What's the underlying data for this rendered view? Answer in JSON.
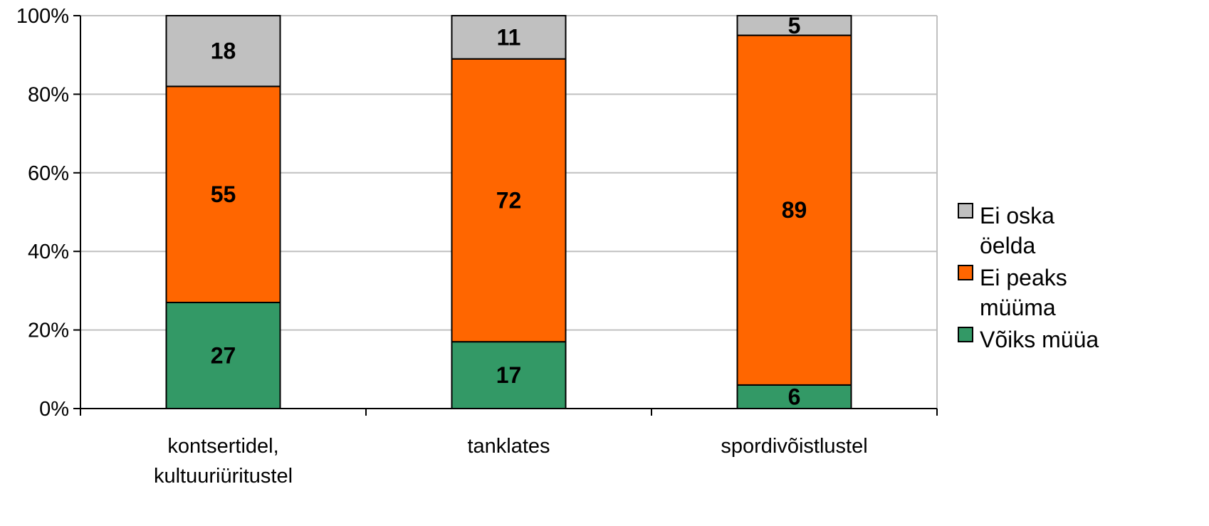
{
  "chart_data": {
    "type": "bar",
    "stacked": true,
    "percent_stacked": true,
    "categories": [
      [
        "kontsertidel,",
        "kultuuriüritustel"
      ],
      [
        "tanklates"
      ],
      [
        "spordivõistlustel"
      ]
    ],
    "series": [
      {
        "name": "Võiks müüa",
        "values": [
          27,
          17,
          6
        ],
        "color": "#339966"
      },
      {
        "name": "Ei peaks müüma",
        "values": [
          55,
          72,
          89
        ],
        "color": "#ff6600"
      },
      {
        "name": "Ei oska öelda",
        "values": [
          18,
          11,
          5
        ],
        "color": "#c0c0c0"
      }
    ],
    "legend_order": [
      {
        "lines": [
          "Ei oska",
          "öelda"
        ],
        "series": 2
      },
      {
        "lines": [
          "Ei peaks",
          "müüma"
        ],
        "series": 1
      },
      {
        "lines": [
          "Võiks müüa"
        ],
        "series": 0
      }
    ],
    "ylim": [
      0,
      100
    ],
    "yticks": [
      "0%",
      "20%",
      "40%",
      "60%",
      "80%",
      "100%"
    ],
    "grid": true,
    "legend_position": "right",
    "title": "",
    "xlabel": "",
    "ylabel": ""
  }
}
